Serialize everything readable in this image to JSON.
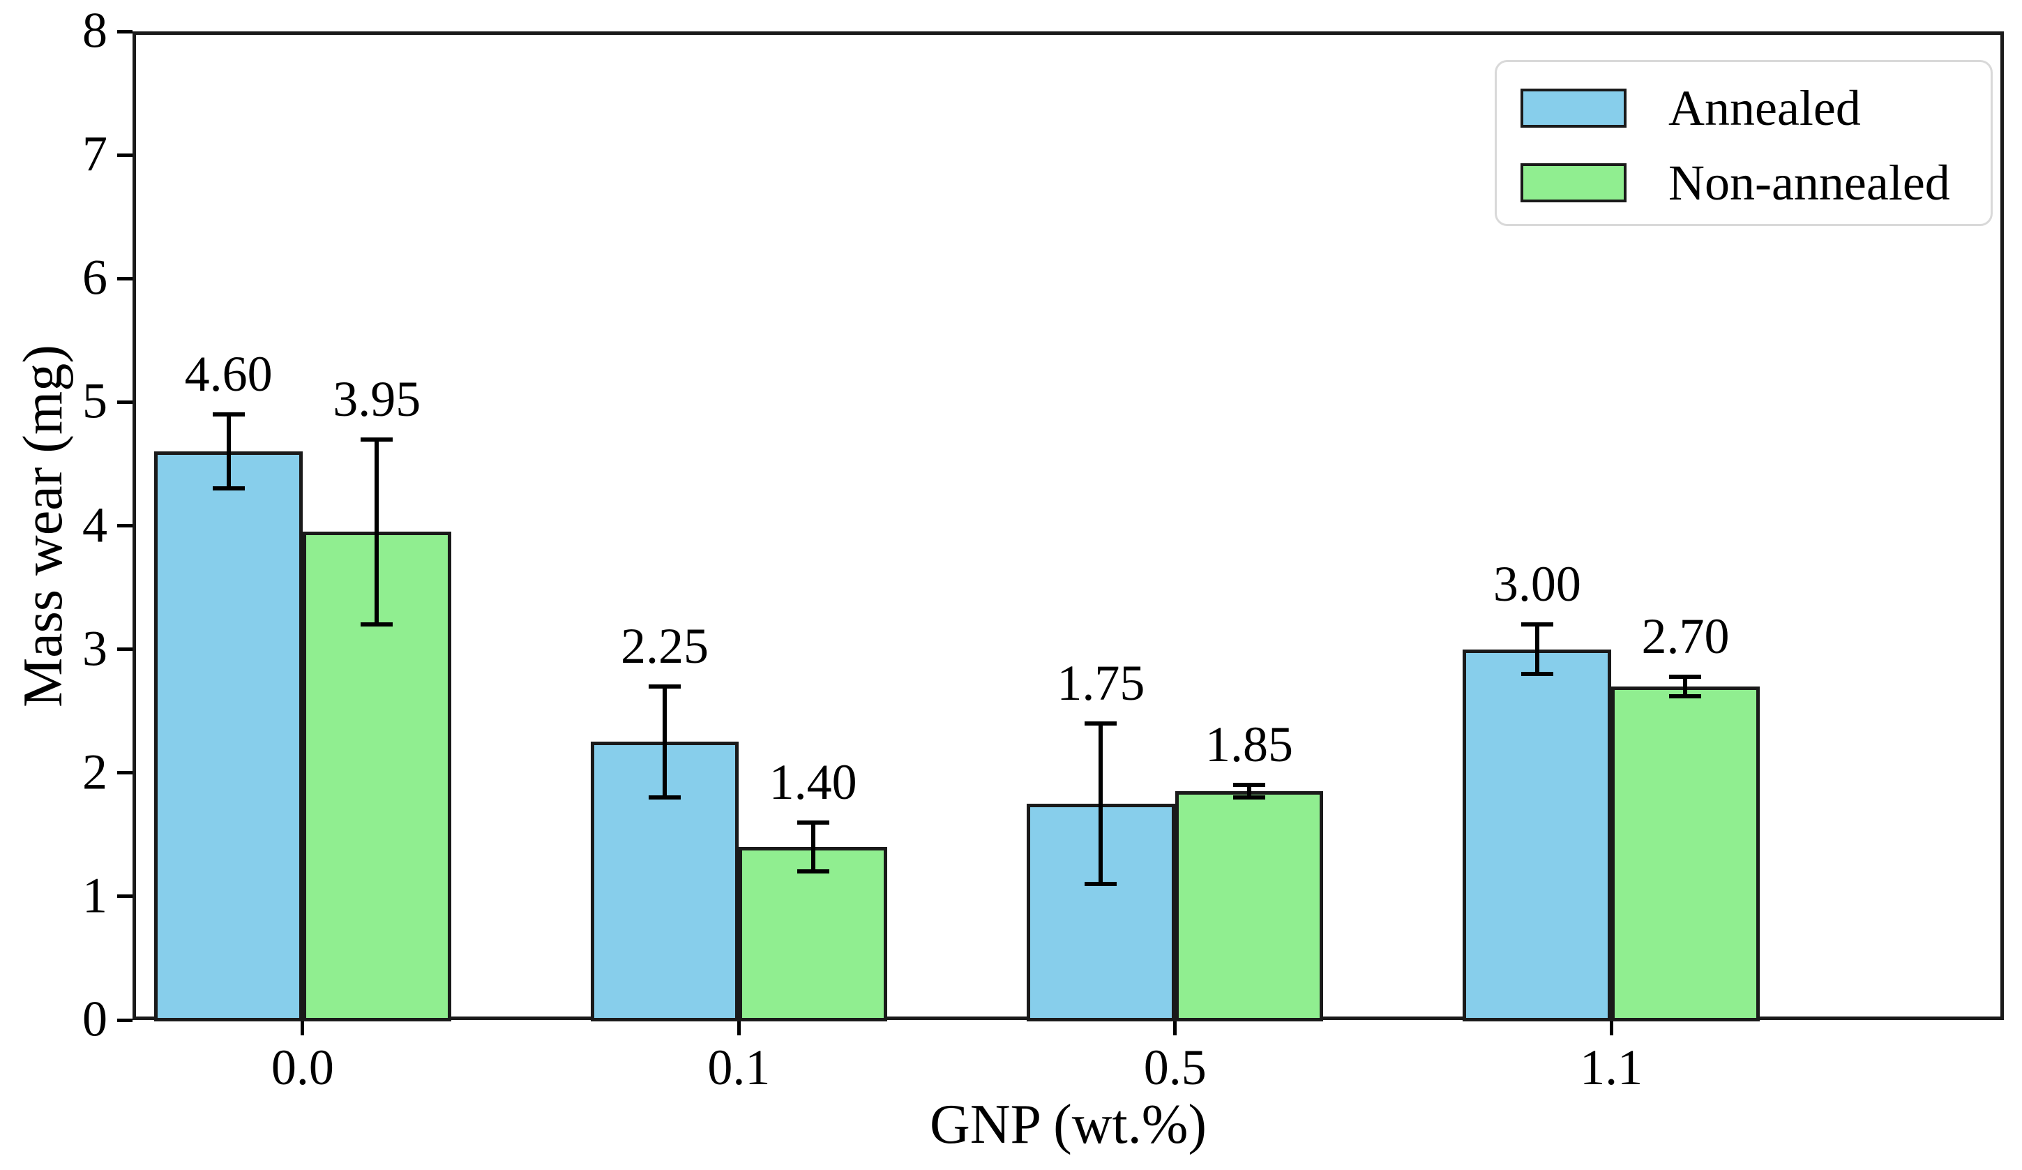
{
  "chart_data": {
    "type": "bar",
    "title": "",
    "xlabel": "GNP (wt.%)",
    "ylabel": "Mass wear (mg)",
    "categories": [
      "0.0",
      "0.1",
      "0.5",
      "1.1"
    ],
    "series": [
      {
        "name": "Annealed",
        "color": "#87CEEB",
        "values": [
          4.6,
          2.25,
          1.75,
          3.0
        ],
        "errors": [
          0.3,
          0.45,
          0.65,
          0.2
        ],
        "labels": [
          "4.60",
          "2.25",
          "1.75",
          "3.00"
        ]
      },
      {
        "name": "Non-annealed",
        "color": "#90EE90",
        "values": [
          3.95,
          1.4,
          1.85,
          2.7
        ],
        "errors": [
          0.75,
          0.2,
          0.05,
          0.08
        ],
        "labels": [
          "3.95",
          "1.40",
          "1.85",
          "2.70"
        ]
      }
    ],
    "yticks": [
      "0",
      "1",
      "2",
      "3",
      "4",
      "5",
      "6",
      "7",
      "8"
    ],
    "ylim": [
      0,
      8
    ],
    "xlim": [
      -0.39,
      3.9
    ],
    "bar_width_units": 0.34,
    "grid": false,
    "legend_position": "upper right",
    "edge_color": "#1a1a1a",
    "error_bar_color": "#000000",
    "background_color": "#ffffff"
  }
}
